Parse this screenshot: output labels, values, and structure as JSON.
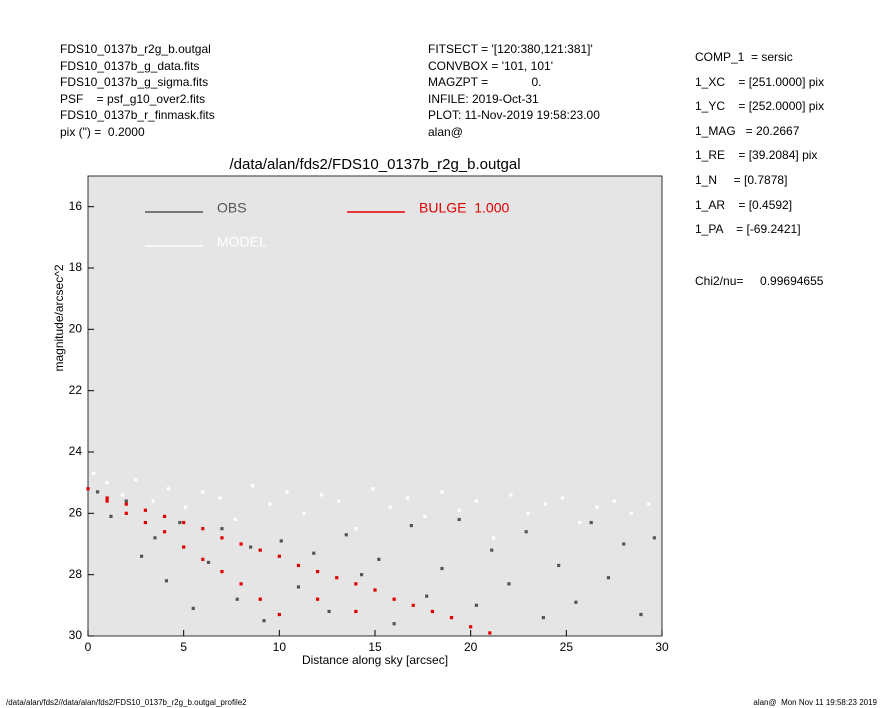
{
  "header": {
    "left": [
      "FDS10_0137b_r2g_b.outgal",
      "FDS10_0137b_g_data.fits",
      "FDS10_0137b_g_sigma.fits",
      "PSF    = psf_g10_over2.fits",
      "FDS10_0137b_r_finmask.fits",
      "pix (\") =  0.2000"
    ],
    "middle": [
      "FITSECT = '[120:380,121:381]'",
      "CONVBOX = '101, 101'",
      "MAGZPT =             0.",
      "INFILE: 2019-Oct-31",
      "PLOT: 11-Nov-2019 19:58:23.00",
      "alan@"
    ],
    "params": [
      "COMP_1  = sersic",
      "1_XC    = [251.0000] pix",
      "1_YC    = [252.0000] pix",
      "1_MAG   = 20.2667",
      "1_RE    = [39.2084] pix",
      "1_N     = [0.7878]",
      "1_AR    = [0.4592]",
      "1_PA    = [-69.2421]"
    ],
    "chi2": "Chi2/nu=     0.99694655"
  },
  "footer": {
    "left": "/data/alan/fds2//data/alan/fds2/FDS10_0137b_r2g_b.outgal_profile2",
    "right": "alan@  Mon Nov 11 19:58:23 2019"
  },
  "chart_data": {
    "type": "scatter",
    "title": "/data/alan/fds2/FDS10_0137b_r2g_b.outgal",
    "x_label": "Distance along sky [arcsec]",
    "y_label": "magnitude/arcsec^2",
    "xlim": [
      0,
      30
    ],
    "xticks": [
      0,
      5,
      10,
      15,
      20,
      25,
      30
    ],
    "ylim": [
      15,
      30
    ],
    "y_inverted": true,
    "yticks": [
      16,
      18,
      20,
      22,
      24,
      26,
      28,
      30
    ],
    "background": "#e5e5e5",
    "series": [
      {
        "name": "OBS",
        "color": "#555555",
        "x": [
          0.5,
          1.2,
          2.0,
          2.8,
          3.5,
          4.1,
          4.8,
          5.5,
          6.3,
          7.0,
          7.8,
          8.5,
          9.2,
          10.1,
          11.0,
          11.8,
          12.6,
          13.5,
          14.3,
          15.2,
          16.0,
          16.9,
          17.7,
          18.5,
          19.4,
          20.3,
          21.1,
          22.0,
          22.9,
          23.8,
          24.6,
          25.5,
          26.3,
          27.2,
          28.0,
          28.9,
          29.6
        ],
        "values": [
          25.3,
          26.1,
          25.6,
          27.4,
          26.8,
          28.2,
          26.3,
          29.1,
          27.6,
          26.5,
          28.8,
          27.1,
          29.5,
          26.9,
          28.4,
          27.3,
          29.2,
          26.7,
          28.0,
          27.5,
          29.6,
          26.4,
          28.7,
          27.8,
          26.2,
          29.0,
          27.2,
          28.3,
          26.6,
          29.4,
          27.7,
          28.9,
          26.3,
          28.1,
          27.0,
          29.3,
          26.8
        ]
      },
      {
        "name": "MODEL",
        "color": "#ffffff",
        "x": [
          0.3,
          1.0,
          1.8,
          2.5,
          3.4,
          4.2,
          5.1,
          6.0,
          6.9,
          7.7,
          8.6,
          9.5,
          10.4,
          11.3,
          12.2,
          13.1,
          14.0,
          14.9,
          15.8,
          16.7,
          17.6,
          18.5,
          19.4,
          20.3,
          21.2,
          22.1,
          23.0,
          23.9,
          24.8,
          25.7,
          26.6,
          27.5,
          28.4,
          29.3
        ],
        "values": [
          24.7,
          25.0,
          25.4,
          24.9,
          25.6,
          25.2,
          25.8,
          25.3,
          25.5,
          26.2,
          25.1,
          25.7,
          25.3,
          26.0,
          25.4,
          25.6,
          26.5,
          25.2,
          25.8,
          25.5,
          26.1,
          25.3,
          25.9,
          25.6,
          26.8,
          25.4,
          26.0,
          25.7,
          25.5,
          26.3,
          25.8,
          25.6,
          26.0,
          25.7
        ]
      },
      {
        "name": "BULGE  1.000",
        "color": "#e00000",
        "x": [
          0,
          1,
          1,
          2,
          2,
          3,
          3,
          4,
          4,
          5,
          5,
          6,
          6,
          7,
          7,
          8,
          8,
          9,
          9,
          10,
          10,
          11,
          12,
          12,
          13,
          14,
          14,
          15,
          16,
          17,
          18,
          19,
          20,
          21
        ],
        "values": [
          25.2,
          25.5,
          25.6,
          25.7,
          26.0,
          25.9,
          26.3,
          26.1,
          26.6,
          26.3,
          27.1,
          26.5,
          27.5,
          26.8,
          27.9,
          27.0,
          28.3,
          27.2,
          28.8,
          27.4,
          29.3,
          27.7,
          27.9,
          28.8,
          28.1,
          28.3,
          29.2,
          28.5,
          28.8,
          29.0,
          29.2,
          29.4,
          29.7,
          29.9
        ]
      }
    ]
  }
}
